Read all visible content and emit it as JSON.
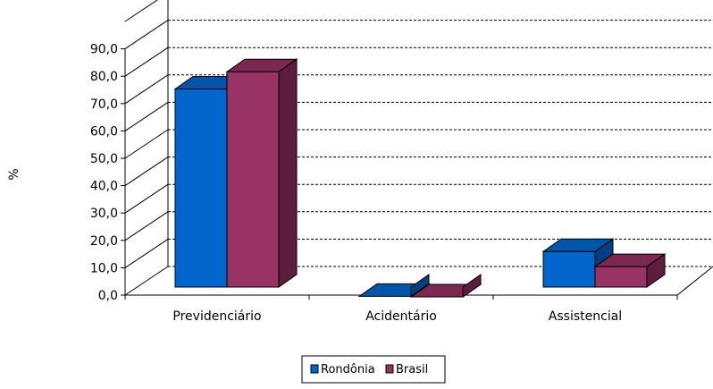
{
  "chart_data": {
    "type": "bar",
    "three_d": true,
    "title": "",
    "xlabel": "",
    "ylabel": "%",
    "ylim": [
      0,
      90
    ],
    "y_ticks": [
      "0,0",
      "10,0",
      "20,0",
      "30,0",
      "40,0",
      "50,0",
      "60,0",
      "70,0",
      "80,0",
      "90,0"
    ],
    "grid": "dashed horizontal",
    "categories": [
      "Previdenciário",
      "Acidentário",
      "Assistencial"
    ],
    "series": [
      {
        "name": "Rondônia",
        "values": [
          78.6,
          2.8,
          19.2
        ],
        "color": "#0066cc",
        "top_color": "#0055aa",
        "side_color": "#003f80"
      },
      {
        "name": "Brasil",
        "values": [
          84.9,
          2.6,
          13.7
        ],
        "color": "#993366",
        "top_color": "#7a2850",
        "side_color": "#5e1d3d"
      }
    ],
    "legend_position": "bottom-center"
  }
}
